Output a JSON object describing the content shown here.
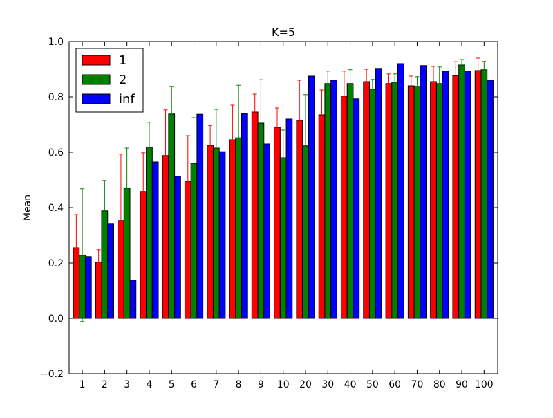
{
  "chart_data": {
    "type": "bar",
    "title": "K=5",
    "xlabel": "",
    "ylabel": "Mean",
    "ylim": [
      -0.2,
      1.0
    ],
    "yticks": [
      "−0.2",
      "0.0",
      "0.2",
      "0.4",
      "0.6",
      "0.8",
      "1.0"
    ],
    "legend_position": "top-left",
    "grid": false,
    "categories": [
      "1",
      "2",
      "3",
      "4",
      "5",
      "6",
      "7",
      "8",
      "9",
      "10",
      "20",
      "30",
      "40",
      "50",
      "60",
      "70",
      "80",
      "90",
      "100"
    ],
    "series": [
      {
        "name": "1",
        "color": "#ff0000",
        "error_color": "#ff0000",
        "values": [
          0.255,
          0.203,
          0.353,
          0.458,
          0.588,
          0.495,
          0.625,
          0.645,
          0.745,
          0.69,
          0.715,
          0.735,
          0.803,
          0.855,
          0.848,
          0.84,
          0.855,
          0.877,
          0.895
        ],
        "errors": [
          0.12,
          0.045,
          0.24,
          0.14,
          0.165,
          0.165,
          0.072,
          0.125,
          0.065,
          0.07,
          0.145,
          0.09,
          0.09,
          0.045,
          0.035,
          0.035,
          0.055,
          0.05,
          0.045
        ]
      },
      {
        "name": "2",
        "color": "#008000",
        "error_color": "#008000",
        "values": [
          0.228,
          0.388,
          0.47,
          0.618,
          0.738,
          0.56,
          0.615,
          0.652,
          0.705,
          0.58,
          0.623,
          0.848,
          0.848,
          0.828,
          0.853,
          0.838,
          0.848,
          0.915,
          0.898
        ],
        "errors": [
          0.24,
          0.11,
          0.145,
          0.09,
          0.1,
          0.165,
          0.14,
          0.19,
          0.157,
          0.1,
          0.185,
          0.045,
          0.05,
          0.035,
          0.03,
          0.035,
          0.06,
          0.02,
          0.03
        ]
      },
      {
        "name": "inf",
        "color": "#0000ff",
        "error_color": "#0000ff",
        "values": [
          0.223,
          0.343,
          0.138,
          0.565,
          0.513,
          0.737,
          0.602,
          0.74,
          0.63,
          0.72,
          0.875,
          0.86,
          0.793,
          0.903,
          0.92,
          0.913,
          0.893,
          0.893,
          0.86
        ]
      }
    ]
  }
}
